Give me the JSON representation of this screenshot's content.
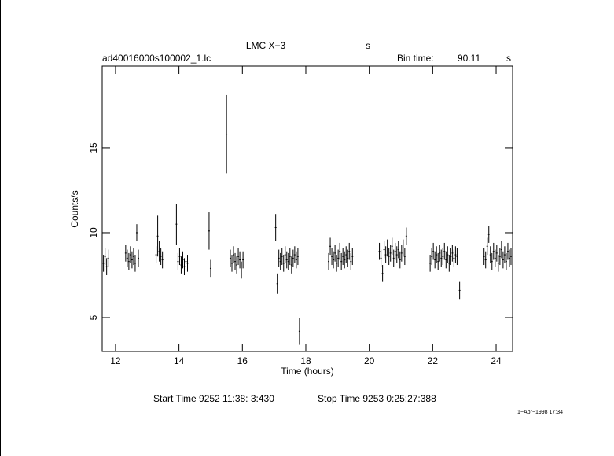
{
  "chart_data": {
    "type": "errorbar",
    "title": "LMC X−3",
    "title_unit": "s",
    "file_label": "ad40016000s100002_1.lc",
    "bin_time_label": "Bin time:",
    "bin_time_value": "90.11",
    "bin_time_unit": "s",
    "x_label": "Time (hours)",
    "y_label": "Counts/s",
    "start_label": "Start Time  9252 11:38: 3:430",
    "stop_label": "Stop Time  9253  0:25:27:388",
    "date_stamp": "1−Apr−1998 17:34",
    "color": "#000000",
    "xlim": [
      11.58,
      24.52
    ],
    "ylim": [
      3.01,
      19.81
    ],
    "xticks": [
      12,
      14,
      16,
      18,
      20,
      22,
      24
    ],
    "yticks": [
      5,
      10,
      15
    ],
    "x": [
      11.62,
      11.67,
      11.72,
      11.77,
      12.32,
      12.37,
      12.42,
      12.47,
      12.52,
      12.57,
      12.62,
      12.67,
      12.72,
      13.28,
      13.33,
      13.38,
      13.43,
      13.48,
      13.92,
      13.97,
      14.02,
      14.07,
      14.12,
      14.17,
      14.22,
      14.27,
      14.95,
      15.0,
      15.5,
      15.62,
      15.67,
      15.72,
      15.77,
      15.82,
      15.87,
      15.92,
      15.97,
      16.02,
      17.05,
      17.1,
      17.15,
      17.2,
      17.25,
      17.3,
      17.35,
      17.4,
      17.45,
      17.5,
      17.55,
      17.6,
      17.65,
      17.7,
      17.75,
      17.8,
      18.72,
      18.77,
      18.82,
      18.87,
      18.92,
      18.97,
      19.02,
      19.07,
      19.12,
      19.17,
      19.22,
      19.27,
      19.32,
      19.37,
      19.42,
      19.47,
      20.32,
      20.37,
      20.42,
      20.47,
      20.52,
      20.57,
      20.62,
      20.67,
      20.72,
      20.77,
      20.82,
      20.87,
      20.92,
      20.97,
      21.02,
      21.07,
      21.12,
      21.17,
      21.92,
      21.97,
      22.02,
      22.07,
      22.12,
      22.17,
      22.22,
      22.27,
      22.32,
      22.37,
      22.42,
      22.47,
      22.52,
      22.57,
      22.62,
      22.67,
      22.72,
      22.77,
      22.85,
      23.62,
      23.67,
      23.72,
      23.77,
      23.82,
      23.87,
      23.92,
      23.97,
      24.02,
      24.07,
      24.12,
      24.17,
      24.22,
      24.27,
      24.32,
      24.37,
      24.42,
      24.47
    ],
    "values": [
      8.2,
      8.6,
      8.0,
      8.5,
      8.8,
      8.5,
      8.3,
      8.7,
      8.4,
      8.6,
      8.2,
      10.0,
      8.5,
      8.7,
      9.8,
      8.9,
      8.6,
      8.4,
      10.5,
      8.3,
      8.6,
      8.1,
      8.4,
      8.0,
      8.3,
      8.2,
      10.1,
      7.9,
      15.8,
      8.5,
      8.2,
      8.7,
      8.3,
      8.1,
      8.6,
      8.4,
      7.8,
      8.4,
      10.3,
      7.0,
      8.5,
      8.3,
      8.6,
      8.2,
      8.7,
      8.4,
      8.3,
      8.6,
      8.1,
      8.5,
      8.7,
      8.4,
      8.6,
      4.2,
      8.3,
      9.2,
      8.6,
      8.4,
      8.8,
      8.2,
      8.5,
      8.9,
      8.3,
      8.6,
      8.4,
      8.7,
      8.5,
      8.9,
      8.3,
      8.6,
      8.9,
      8.5,
      7.6,
      9.0,
      8.7,
      9.1,
      8.6,
      8.8,
      9.2,
      8.5,
      8.9,
      8.7,
      9.0,
      8.4,
      8.8,
      9.1,
      8.6,
      9.8,
      8.2,
      8.6,
      8.9,
      8.4,
      8.7,
      8.3,
      8.8,
      8.5,
      8.6,
      8.9,
      8.4,
      8.7,
      8.2,
      8.6,
      8.8,
      8.5,
      8.7,
      8.6,
      6.6,
      8.6,
      8.4,
      9.2,
      9.9,
      8.7,
      8.3,
      8.9,
      8.5,
      8.8,
      8.2,
      8.6,
      9.0,
      8.4,
      8.7,
      8.3,
      8.9,
      8.5,
      8.6
    ],
    "errors": [
      0.5,
      0.5,
      0.5,
      0.5,
      0.5,
      0.5,
      0.5,
      0.5,
      0.5,
      0.5,
      0.5,
      0.5,
      0.5,
      0.5,
      1.2,
      0.6,
      0.5,
      0.5,
      1.2,
      0.5,
      0.5,
      0.5,
      0.5,
      0.5,
      0.5,
      0.5,
      1.1,
      0.5,
      2.3,
      0.5,
      0.5,
      0.5,
      0.5,
      0.5,
      0.5,
      0.5,
      0.5,
      0.5,
      0.8,
      0.6,
      0.5,
      0.5,
      0.5,
      0.5,
      0.5,
      0.5,
      0.5,
      0.5,
      0.5,
      0.5,
      0.5,
      0.5,
      0.5,
      0.8,
      0.5,
      0.5,
      0.5,
      0.5,
      0.5,
      0.5,
      0.5,
      0.5,
      0.5,
      0.5,
      0.5,
      0.5,
      0.5,
      0.5,
      0.5,
      0.5,
      0.5,
      0.5,
      0.5,
      0.5,
      0.5,
      0.5,
      0.5,
      0.5,
      0.5,
      0.5,
      0.5,
      0.5,
      0.5,
      0.5,
      0.5,
      0.5,
      0.5,
      0.5,
      0.5,
      0.5,
      0.5,
      0.5,
      0.5,
      0.5,
      0.5,
      0.5,
      0.5,
      0.5,
      0.5,
      0.5,
      0.5,
      0.5,
      0.5,
      0.5,
      0.5,
      0.5,
      0.5,
      0.5,
      0.5,
      0.5,
      0.5,
      0.5,
      0.5,
      0.5,
      0.5,
      0.5,
      0.5,
      0.5,
      0.5,
      0.5,
      0.5,
      0.5,
      0.5,
      0.5,
      0.5
    ]
  }
}
